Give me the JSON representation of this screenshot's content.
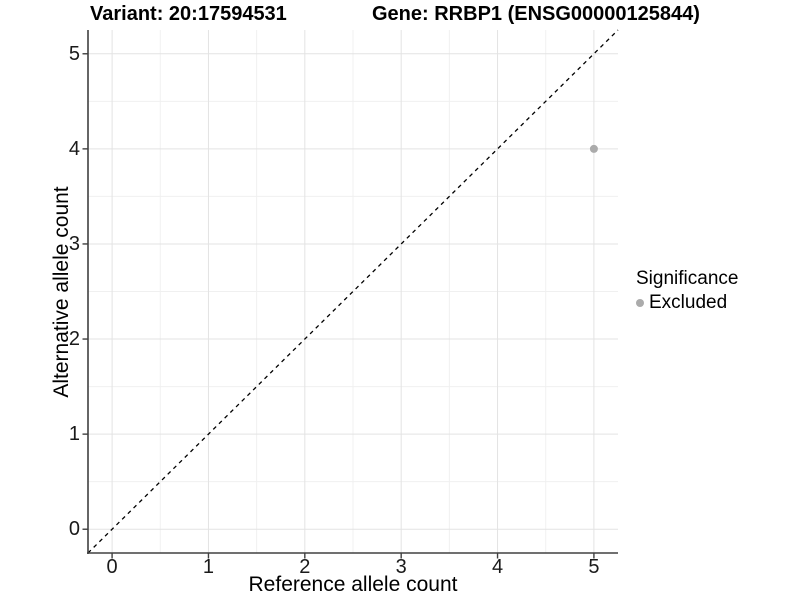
{
  "chart_data": {
    "type": "scatter",
    "title_left": "Variant: 20:17594531",
    "title_right": "Gene: RRBP1 (ENSG00000125844)",
    "xlabel": "Reference allele count",
    "ylabel": "Alternative allele count",
    "xlim": [
      -0.25,
      5.25
    ],
    "ylim": [
      -0.25,
      5.25
    ],
    "xticks": [
      0,
      1,
      2,
      3,
      4,
      5
    ],
    "yticks": [
      0,
      1,
      2,
      3,
      4,
      5
    ],
    "minor_ticks": [
      0.5,
      1.5,
      2.5,
      3.5,
      4.5
    ],
    "grid": "major and minor gridlines, white panel background, left and bottom axis lines only",
    "identity_line": {
      "type": "y=x",
      "style": "dashed",
      "color": "#000000"
    },
    "series": [
      {
        "name": "Excluded",
        "color": "#ababab",
        "points": [
          {
            "x": 5,
            "y": 4
          }
        ]
      }
    ],
    "legend": {
      "title": "Significance",
      "position": "right",
      "entries": [
        {
          "label": "Excluded",
          "color": "#ababab",
          "marker": "circle"
        }
      ]
    }
  },
  "colors": {
    "background": "#ffffff",
    "grid_major": "#e3e3e3",
    "grid_minor": "#f0f0f0",
    "axis_line": "#404040",
    "tick_mark": "#404040",
    "tick_text": "#1a1a1a",
    "title_text": "#000000",
    "point": "#ababab",
    "identity_line": "#000000"
  }
}
